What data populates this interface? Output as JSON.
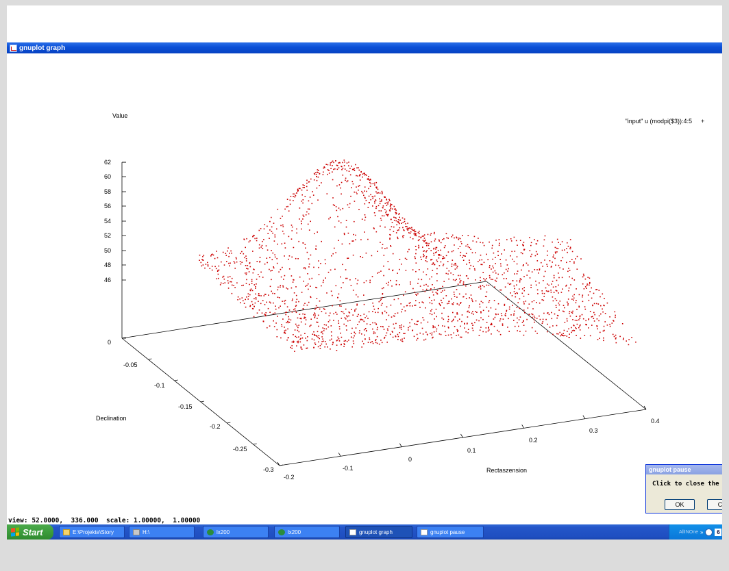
{
  "window": {
    "title": "gnuplot graph"
  },
  "plot": {
    "z_axis_label": "Value",
    "x_axis_label": "Rectaszension",
    "y_axis_label": "Declination",
    "legend": {
      "label": "\"input\" u (modpi($3)):4:5",
      "position": "top-right"
    },
    "z_ticks": [
      "62",
      "60",
      "58",
      "56",
      "54",
      "52",
      "50",
      "48",
      "46",
      "0"
    ],
    "x_ticks": [
      "-0.2",
      "-0.1",
      "0",
      "0.1",
      "0.2",
      "0.3",
      "0.4"
    ],
    "y_ticks": [
      "-0.05",
      "-0.1",
      "-0.15",
      "-0.2",
      "-0.25",
      "-0.3"
    ],
    "point_color": "#cc0000"
  },
  "chart_data": {
    "type": "scatter",
    "title": "",
    "xlabel": "Rectaszension",
    "ylabel": "Declination",
    "zlabel": "Value",
    "xlim": [
      -0.2,
      0.4
    ],
    "ylim": [
      -0.3,
      0
    ],
    "zlim": [
      0,
      62
    ],
    "series": [
      {
        "name": "\"input\" u (modpi($3)):4:5",
        "color": "#cc0000",
        "description_peak": {
          "x": 0.0,
          "y": -0.12,
          "z": 61
        }
      }
    ],
    "grid": false,
    "legend_position": "top-right"
  },
  "status": {
    "text": "view: 52.0000,  336.000  scale: 1.00000,  1.00000"
  },
  "taskbar": {
    "start_label": "Start",
    "tasks": [
      {
        "label": "E:\\Projekte\\Story",
        "icon": "folder-icon"
      },
      {
        "label": "H:\\",
        "icon": "drive-icon"
      },
      {
        "label": "lx200",
        "icon": "app-icon"
      },
      {
        "label": "lx200",
        "icon": "app-icon"
      },
      {
        "label": "gnuplot graph",
        "icon": "graph-icon",
        "active": true
      },
      {
        "label": "gnuplot pause",
        "icon": "graph-icon"
      }
    ],
    "tray": {
      "label": "AllINOne",
      "chevron": "»",
      "number": "6"
    }
  },
  "dialog": {
    "title": "gnuplot pause",
    "message": "Click to close the g",
    "ok_label": "OK",
    "cancel_label": "Can"
  }
}
